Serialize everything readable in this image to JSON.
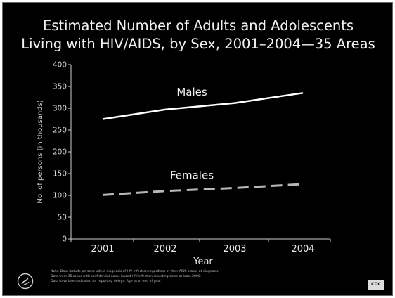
{
  "title_line1": "Estimated Number of Adults and Adolescents",
  "title_line2": "Living with HIV/AIDS, by Sex, 2001–2004—35 Areas",
  "notes": [
    "Note. Data include persons with a diagnosis of HIV infection regardless of their AIDS status at diagnosis.",
    "Data from 35 areas with confidential name-based HIV infection reporting since at least 2000.",
    "Data have been adjusted for reporting delays. Age as of end of year."
  ],
  "logo_cdc_text": "CDC",
  "chart_data": {
    "type": "line",
    "title": "Estimated Number of Adults and Adolescents Living with HIV/AIDS, by Sex, 2001–2004—35 Areas",
    "xlabel": "Year",
    "ylabel": "No. of persons  (in thousands)",
    "categories": [
      "2001",
      "2002",
      "2003",
      "2004"
    ],
    "ylim": [
      0,
      400
    ],
    "yticks": [
      0,
      50,
      100,
      150,
      200,
      250,
      300,
      350,
      400
    ],
    "grid": false,
    "series": [
      {
        "name": "Males",
        "values": [
          275,
          297,
          312,
          335
        ],
        "color": "#ffffff",
        "style": "solid"
      },
      {
        "name": "Females",
        "values": [
          101,
          110,
          117,
          126
        ],
        "color": "#b8b8b8",
        "style": "dashed"
      }
    ]
  }
}
